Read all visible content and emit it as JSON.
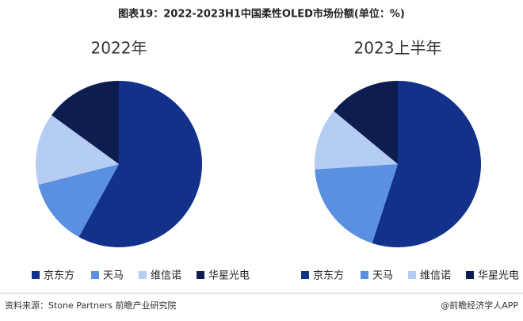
{
  "header": {
    "title": "图表19：2022-2023H1中国柔性OLED市场份额(单位：%)"
  },
  "chart_data": [
    {
      "type": "pie",
      "title": "2022年",
      "categories": [
        "京东方",
        "天马",
        "维信诺",
        "华星光电"
      ],
      "values": [
        58,
        13,
        14,
        15
      ],
      "colors": [
        "#12318a",
        "#5b8fe0",
        "#b5cdf3",
        "#0d1d4f"
      ]
    },
    {
      "type": "pie",
      "title": "2023上半年",
      "categories": [
        "京东方",
        "天马",
        "维信诺",
        "华星光电"
      ],
      "values": [
        55,
        19,
        12,
        14
      ],
      "colors": [
        "#12318a",
        "#5b8fe0",
        "#b5cdf3",
        "#0d1d4f"
      ]
    }
  ],
  "footer": {
    "source": "资料来源：Stone Partners 前瞻产业研究院",
    "credit": "@前瞻经济学人APP"
  }
}
